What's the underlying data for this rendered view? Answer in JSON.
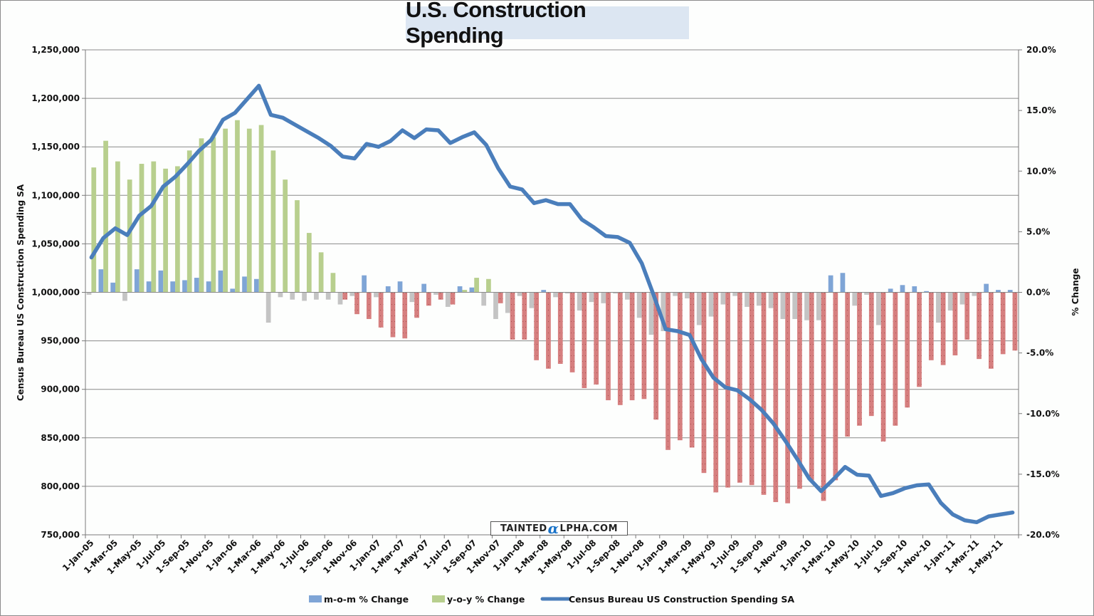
{
  "chart_data": {
    "type": "bar+line",
    "title": "U.S. Construction Spending",
    "ylabel_left": "Census Bureau US Construction Spending SA",
    "ylabel_right": "% Change",
    "ylim_left": [
      750000,
      1250000
    ],
    "ylim_right": [
      -20,
      20
    ],
    "left_ticks": [
      "1,250,000",
      "1,200,000",
      "1,150,000",
      "1,100,000",
      "1,050,000",
      "1,000,000",
      "950,000",
      "900,000",
      "850,000",
      "800,000",
      "750,000"
    ],
    "right_ticks": [
      "20.0%",
      "15.0%",
      "10.0%",
      "5.0%",
      "0.0%",
      "-5.0%",
      "-10.0%",
      "-15.0%",
      "-20.0%"
    ],
    "grid": true,
    "legend_position": "bottom",
    "categories": [
      "1-Jan-05",
      "1-Feb-05",
      "1-Mar-05",
      "1-Apr-05",
      "1-May-05",
      "1-Jun-05",
      "1-Jul-05",
      "1-Aug-05",
      "1-Sep-05",
      "1-Oct-05",
      "1-Nov-05",
      "1-Dec-05",
      "1-Jan-06",
      "1-Feb-06",
      "1-Mar-06",
      "1-Apr-06",
      "1-May-06",
      "1-Jun-06",
      "1-Jul-06",
      "1-Aug-06",
      "1-Sep-06",
      "1-Oct-06",
      "1-Nov-06",
      "1-Dec-06",
      "1-Jan-07",
      "1-Feb-07",
      "1-Mar-07",
      "1-Apr-07",
      "1-May-07",
      "1-Jun-07",
      "1-Jul-07",
      "1-Aug-07",
      "1-Sep-07",
      "1-Oct-07",
      "1-Nov-07",
      "1-Dec-07",
      "1-Jan-08",
      "1-Feb-08",
      "1-Mar-08",
      "1-Apr-08",
      "1-May-08",
      "1-Jun-08",
      "1-Jul-08",
      "1-Aug-08",
      "1-Sep-08",
      "1-Oct-08",
      "1-Nov-08",
      "1-Dec-08",
      "1-Jan-09",
      "1-Feb-09",
      "1-Mar-09",
      "1-Apr-09",
      "1-May-09",
      "1-Jun-09",
      "1-Jul-09",
      "1-Aug-09",
      "1-Sep-09",
      "1-Oct-09",
      "1-Nov-09",
      "1-Dec-09",
      "1-Jan-10",
      "1-Feb-10",
      "1-Mar-10",
      "1-Apr-10",
      "1-May-10",
      "1-Jun-10",
      "1-Jul-10",
      "1-Aug-10",
      "1-Sep-10",
      "1-Oct-10",
      "1-Nov-10",
      "1-Dec-10",
      "1-Jan-11",
      "1-Feb-11",
      "1-Mar-11",
      "1-Apr-11",
      "1-May-11",
      "1-Jun-11"
    ],
    "x_tick_labels_every": 2,
    "series": [
      {
        "name": "m-o-m % Change",
        "type": "bar",
        "axis": "right",
        "color_positive": "#7fa5d6",
        "color_negative": "#c4c4c4",
        "values": [
          -0.2,
          1.9,
          0.8,
          -0.7,
          1.9,
          0.9,
          1.8,
          0.9,
          1.0,
          1.2,
          0.9,
          1.8,
          0.3,
          1.3,
          1.1,
          -2.5,
          -0.4,
          -0.6,
          -0.7,
          -0.6,
          -0.6,
          -1.0,
          -0.3,
          1.4,
          -0.4,
          0.5,
          0.9,
          -0.8,
          0.7,
          -0.2,
          -1.2,
          0.5,
          0.4,
          -1.1,
          -2.2,
          -1.7,
          -0.3,
          -1.3,
          0.2,
          -0.4,
          -0.1,
          -1.5,
          -0.8,
          -0.9,
          -0.1,
          -0.6,
          -2.1,
          -3.5,
          -3.2,
          -0.3,
          -0.5,
          -2.7,
          -2.0,
          -1.0,
          -0.3,
          -1.2,
          -1.1,
          -1.3,
          -2.2,
          -2.2,
          -2.3,
          -2.3,
          1.4,
          1.6,
          -1.1,
          -0.2,
          -2.7,
          0.3,
          0.6,
          0.5,
          0.1,
          -2.5,
          -1.5,
          -1.0,
          -0.3,
          0.7,
          0.2,
          0.2
        ]
      },
      {
        "name": "y-o-y % Change",
        "type": "bar",
        "axis": "right",
        "color_positive": "#b8cf8e",
        "color_negative": "#d67f7f",
        "values": [
          10.3,
          12.5,
          10.8,
          9.3,
          10.6,
          10.8,
          10.2,
          10.4,
          11.7,
          12.7,
          12.8,
          13.5,
          14.2,
          13.5,
          13.8,
          11.7,
          9.3,
          7.6,
          4.9,
          3.3,
          1.6,
          -0.6,
          -1.8,
          -2.2,
          -2.9,
          -3.7,
          -3.8,
          -2.1,
          -1.1,
          -0.6,
          -1.0,
          0.2,
          1.2,
          1.1,
          -0.9,
          -3.9,
          -3.9,
          -5.6,
          -6.3,
          -5.9,
          -6.6,
          -7.9,
          -7.6,
          -8.9,
          -9.3,
          -8.9,
          -8.8,
          -10.5,
          -13.0,
          -12.2,
          -12.8,
          -14.9,
          -16.5,
          -16.1,
          -15.7,
          -15.9,
          -16.7,
          -17.3,
          -17.4,
          -16.2,
          -15.5,
          -17.2,
          -15.5,
          -11.9,
          -11.0,
          -10.2,
          -12.3,
          -11.0,
          -9.5,
          -7.8,
          -5.6,
          -6.0,
          -5.2,
          -3.9,
          -5.5,
          -6.3,
          -5.1,
          -4.8
        ]
      },
      {
        "name": "Census Bureau US Construction Spending SA",
        "type": "line",
        "axis": "left",
        "color": "#4a7ebb",
        "values": [
          1036000,
          1056000,
          1066000,
          1059000,
          1079000,
          1089000,
          1109000,
          1119000,
          1132000,
          1146000,
          1157000,
          1178000,
          1185000,
          1199000,
          1213000,
          1183000,
          1180000,
          1173000,
          1166000,
          1159000,
          1151000,
          1140000,
          1138000,
          1153000,
          1150000,
          1156000,
          1167000,
          1159000,
          1168000,
          1167000,
          1154000,
          1160000,
          1165000,
          1152000,
          1128000,
          1109000,
          1106000,
          1092000,
          1095000,
          1091000,
          1091000,
          1075000,
          1067000,
          1058000,
          1057000,
          1051000,
          1030000,
          997000,
          962000,
          960000,
          956000,
          931000,
          912000,
          902000,
          899000,
          890000,
          879000,
          865000,
          847000,
          828000,
          808000,
          795000,
          807000,
          820000,
          812000,
          811000,
          790000,
          793000,
          798000,
          801000,
          802000,
          783000,
          771000,
          765000,
          763000,
          769000,
          771000,
          773000
        ]
      }
    ]
  },
  "watermark": {
    "left": "TAINTED",
    "alpha": "α",
    "right": "LPHA.COM"
  }
}
